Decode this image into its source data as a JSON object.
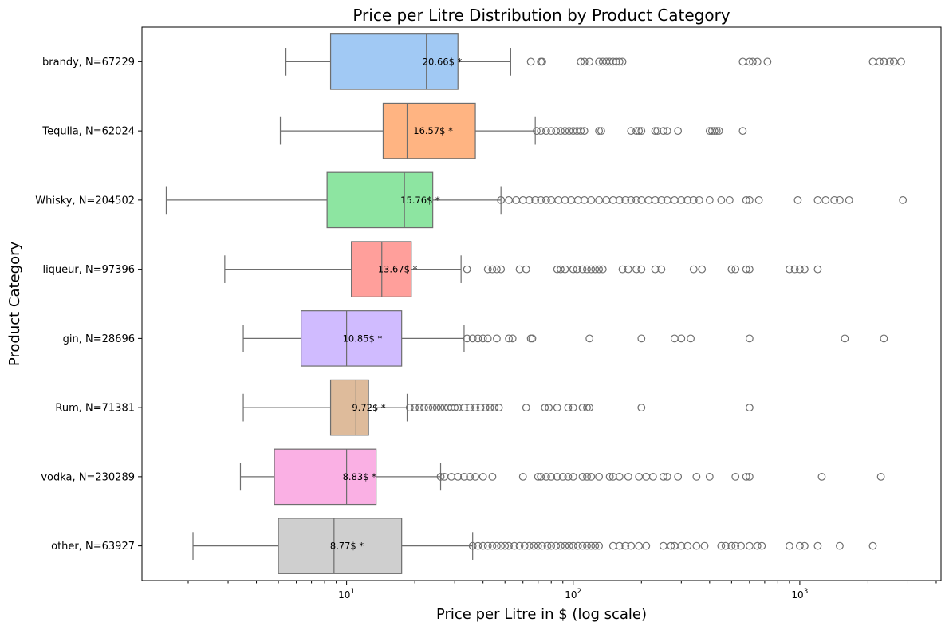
{
  "chart_data": {
    "type": "boxplot",
    "title": "Price per Litre Distribution by Product Category",
    "xlabel": "Price per Litre in $ (log scale)",
    "ylabel": "Product Category",
    "x_scale": "log",
    "xlim": [
      1.25,
      4200
    ],
    "x_ticks": [
      10,
      100,
      1000
    ],
    "grid": false,
    "categories": [
      {
        "label": "brandy, N=67229",
        "color": "#a1c9f4",
        "whisker_low": 5.4,
        "q1": 8.5,
        "median": 22.5,
        "q3": 31,
        "whisker_high": 53,
        "annotation": "20.66$ *",
        "outliers": [
          65,
          72,
          73,
          108,
          112,
          118,
          130,
          135,
          140,
          145,
          150,
          155,
          160,
          165,
          560,
          600,
          620,
          650,
          720,
          2100,
          2250,
          2350,
          2500,
          2600,
          2800
        ]
      },
      {
        "label": "Tequila, N=62024",
        "color": "#ffb482",
        "whisker_low": 5.1,
        "q1": 14.5,
        "median": 18.5,
        "q3": 37,
        "whisker_high": 68,
        "annotation": "16.57$ *",
        "outliers": [
          69,
          72,
          76,
          80,
          84,
          88,
          92,
          96,
          100,
          104,
          108,
          112,
          130,
          133,
          180,
          190,
          195,
          200,
          230,
          235,
          250,
          260,
          290,
          400,
          410,
          420,
          430,
          440,
          560
        ]
      },
      {
        "label": "Whisky, N=204502",
        "color": "#8de5a1",
        "whisker_low": 1.6,
        "q1": 8.2,
        "median": 18,
        "q3": 24,
        "whisker_high": 48,
        "annotation": "15.76$ *",
        "outliers": [
          48,
          52,
          56,
          60,
          64,
          68,
          72,
          76,
          80,
          86,
          92,
          98,
          105,
          112,
          120,
          130,
          140,
          150,
          160,
          170,
          180,
          190,
          200,
          215,
          230,
          245,
          260,
          280,
          300,
          320,
          340,
          360,
          400,
          450,
          490,
          580,
          600,
          660,
          980,
          1200,
          1300,
          1420,
          1500,
          1650,
          2850
        ]
      },
      {
        "label": "liqueur, N=97396",
        "color": "#ff9f9b",
        "whisker_low": 2.9,
        "q1": 10.5,
        "median": 14.3,
        "q3": 19.3,
        "whisker_high": 32,
        "annotation": "13.67$ *",
        "outliers": [
          34,
          42,
          44,
          46,
          48,
          58,
          62,
          85,
          88,
          92,
          100,
          104,
          110,
          115,
          120,
          125,
          130,
          135,
          165,
          175,
          190,
          200,
          230,
          245,
          340,
          370,
          500,
          520,
          580,
          600,
          900,
          950,
          1000,
          1050,
          1200
        ]
      },
      {
        "label": "gin, N=28696",
        "color": "#d0bbff",
        "whisker_low": 3.5,
        "q1": 6.3,
        "median": 10,
        "q3": 17.5,
        "whisker_high": 33,
        "annotation": "10.85$ *",
        "outliers": [
          34,
          36,
          38,
          40,
          42,
          46,
          52,
          54,
          65,
          66,
          118,
          200,
          280,
          300,
          330,
          600,
          1580,
          2350
        ]
      },
      {
        "label": "Rum, N=71381",
        "color": "#debb9b",
        "whisker_low": 3.5,
        "q1": 8.5,
        "median": 11,
        "q3": 12.5,
        "whisker_high": 18.5,
        "annotation": "9.72$ *",
        "outliers": [
          19,
          20,
          21,
          22,
          23,
          24,
          25,
          26,
          27,
          28,
          29,
          30,
          31,
          33,
          35,
          37,
          39,
          41,
          43,
          45,
          47,
          62,
          75,
          78,
          85,
          95,
          100,
          110,
          115,
          118,
          200,
          600
        ]
      },
      {
        "label": "vodka, N=230289",
        "color": "#fab0e4",
        "whisker_low": 3.4,
        "q1": 4.8,
        "median": 10,
        "q3": 13.5,
        "whisker_high": 26,
        "annotation": "8.83$ *",
        "outliers": [
          26,
          27,
          29,
          31,
          33,
          35,
          37,
          40,
          44,
          60,
          70,
          72,
          76,
          80,
          85,
          90,
          95,
          100,
          110,
          115,
          120,
          130,
          145,
          150,
          160,
          175,
          195,
          210,
          225,
          250,
          260,
          290,
          350,
          400,
          520,
          580,
          600,
          1250,
          2280
        ]
      },
      {
        "label": "other, N=63927",
        "color": "#cfcfcf",
        "whisker_low": 2.1,
        "q1": 5,
        "median": 8.8,
        "q3": 17.5,
        "whisker_high": 36,
        "annotation": "8.77$ *",
        "outliers": [
          36,
          38,
          40,
          42,
          44,
          46,
          48,
          50,
          52,
          55,
          58,
          61,
          64,
          67,
          70,
          73,
          77,
          80,
          84,
          88,
          92,
          96,
          100,
          105,
          110,
          115,
          120,
          125,
          130,
          150,
          160,
          170,
          180,
          195,
          210,
          250,
          270,
          280,
          300,
          320,
          350,
          380,
          450,
          470,
          500,
          520,
          550,
          600,
          650,
          680,
          900,
          1000,
          1050,
          1200,
          1500,
          2100
        ]
      }
    ]
  }
}
